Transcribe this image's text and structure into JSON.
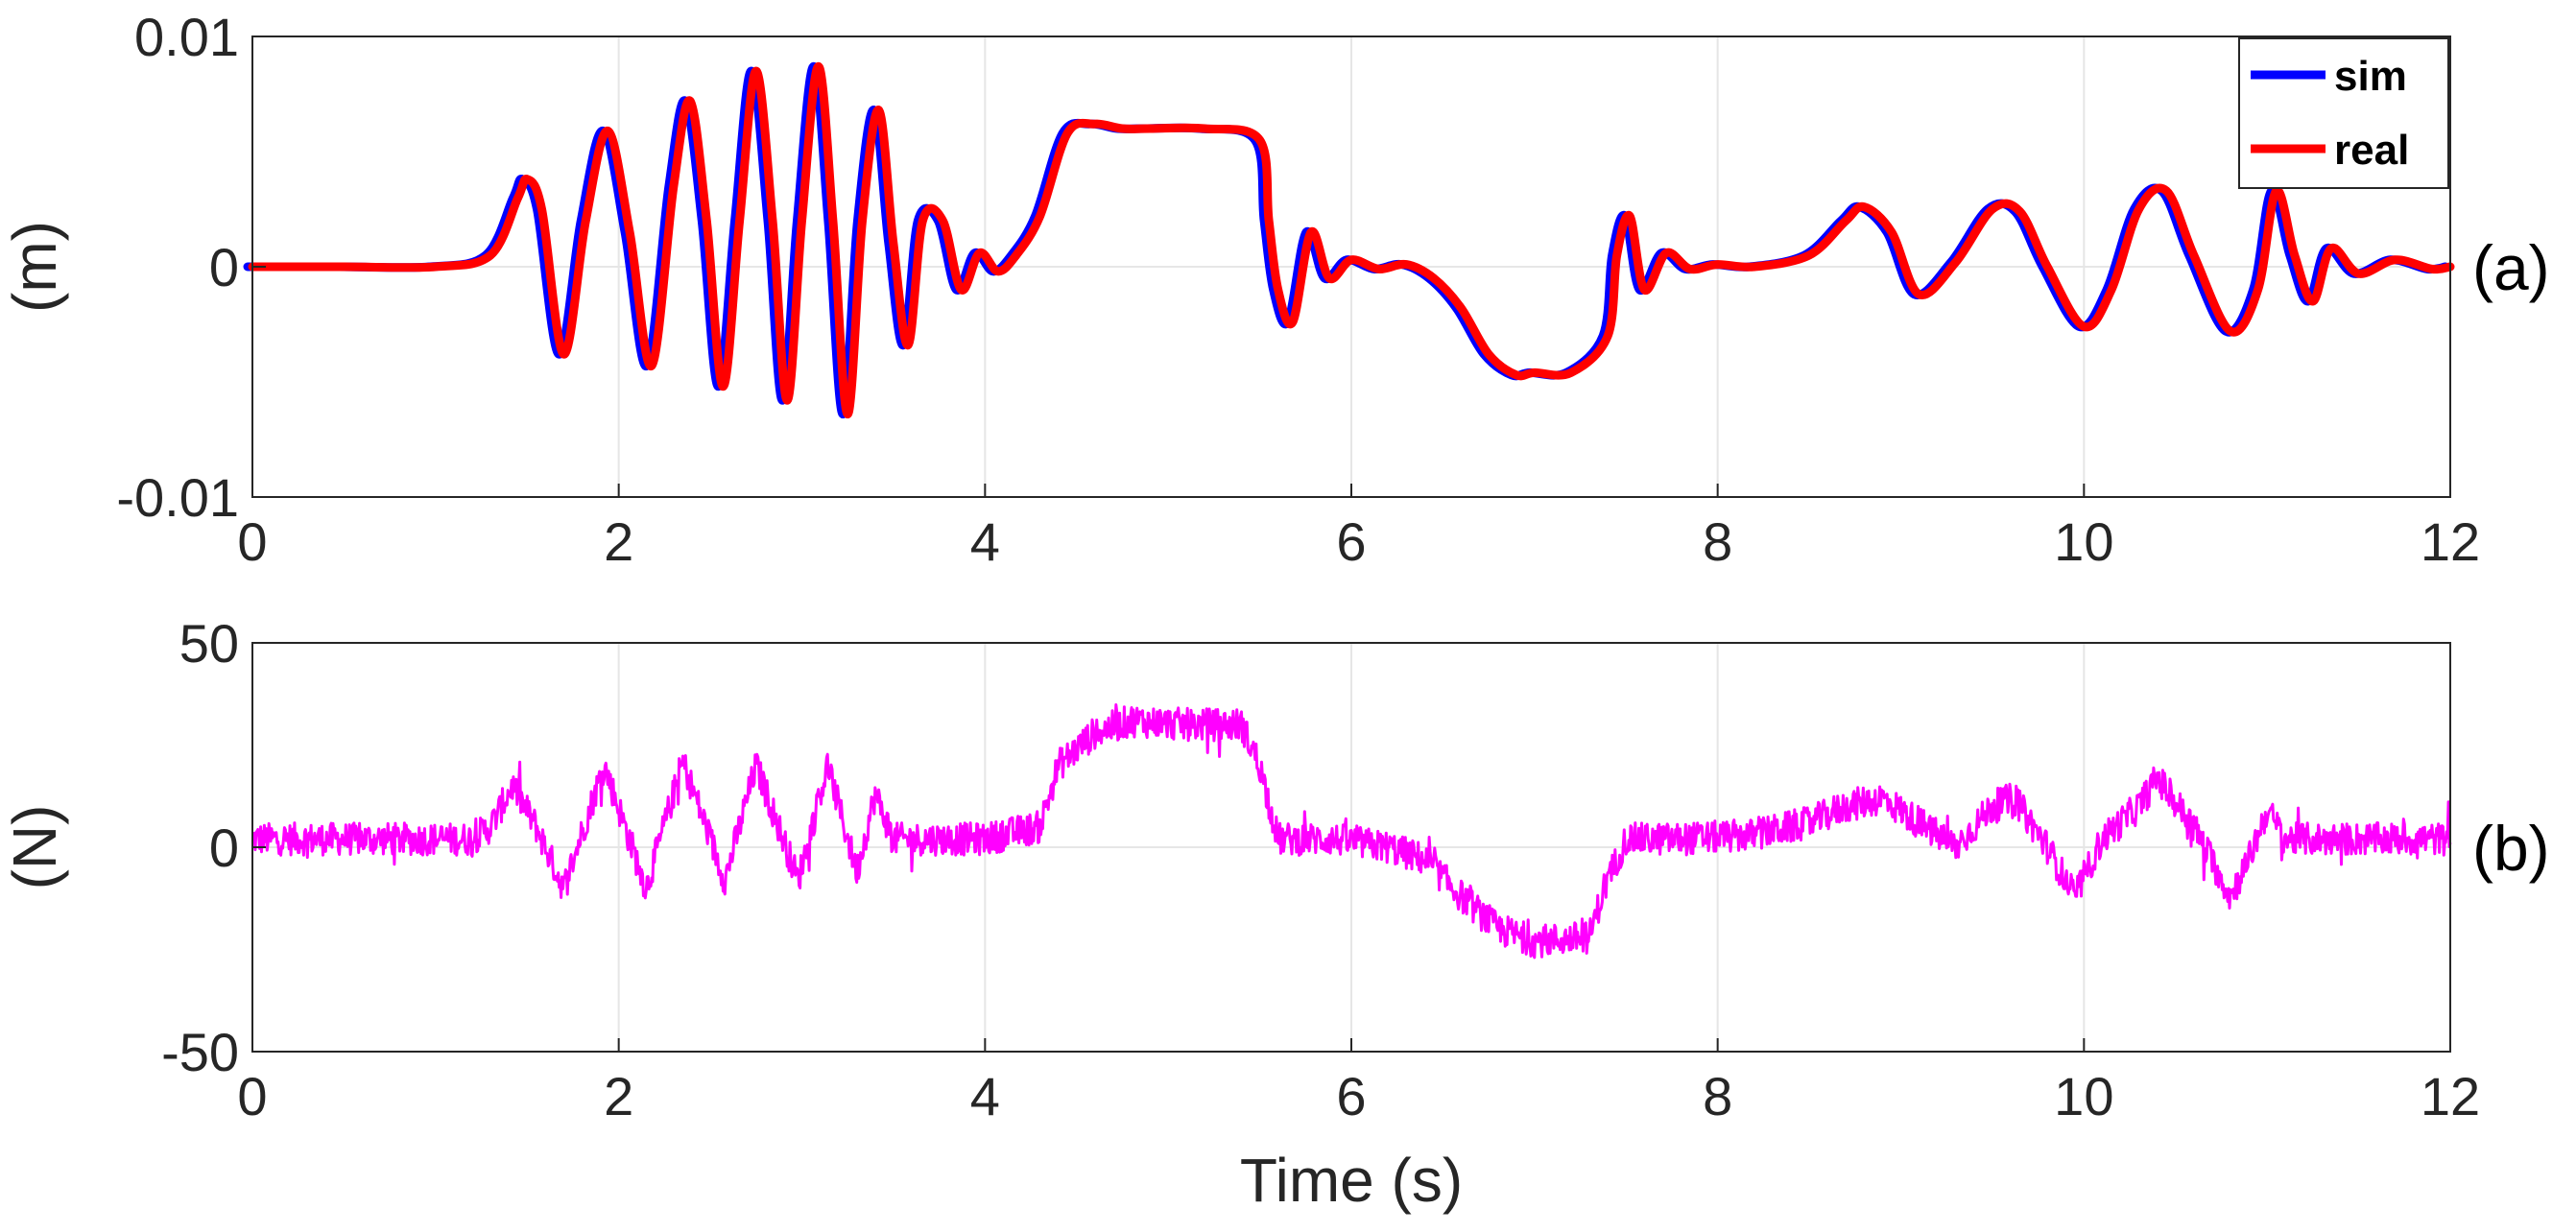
{
  "chart_data": [
    {
      "type": "line",
      "panel_label": "(a)",
      "ylabel": "(m)",
      "xlabel": "",
      "xlim": [
        0,
        12
      ],
      "ylim": [
        -0.01,
        0.01
      ],
      "xticks": [
        "0",
        "2",
        "4",
        "6",
        "8",
        "10",
        "12"
      ],
      "yticks": [
        "-0.01",
        "0",
        "0.01"
      ],
      "grid": true,
      "legend_position": "top-right",
      "series": [
        {
          "name": "sim",
          "color": "#0000ff",
          "x": [
            0,
            0.5,
            1.0,
            1.3,
            1.45,
            1.5,
            1.58,
            1.7,
            1.82,
            1.94,
            2.06,
            2.18,
            2.3,
            2.39,
            2.48,
            2.57,
            2.66,
            2.75,
            2.84,
            2.92,
            3.0,
            3.09,
            3.17,
            3.25,
            3.33,
            3.42,
            3.5,
            3.58,
            3.66,
            3.77,
            3.87,
            3.97,
            4.07,
            4.17,
            4.3,
            4.45,
            4.6,
            4.75,
            4.9,
            5.2,
            5.5,
            5.55,
            5.6,
            5.68,
            5.78,
            5.88,
            6.0,
            6.15,
            6.3,
            6.45,
            6.6,
            6.75,
            6.9,
            7.0,
            7.2,
            7.4,
            7.45,
            7.52,
            7.6,
            7.72,
            7.85,
            8.0,
            8.2,
            8.5,
            8.7,
            8.8,
            8.95,
            9.1,
            9.3,
            9.5,
            9.65,
            9.8,
            10.0,
            10.15,
            10.3,
            10.45,
            10.6,
            10.8,
            10.95,
            11.05,
            11.15,
            11.25,
            11.35,
            11.5,
            11.7,
            11.9,
            12.0
          ],
          "y": [
            0,
            0,
            0,
            0.0005,
            0.003,
            0.0038,
            0.0025,
            -0.0038,
            0.002,
            0.0059,
            0.0015,
            -0.0043,
            0.0035,
            0.0072,
            0.002,
            -0.0052,
            0.002,
            0.0085,
            0.002,
            -0.0058,
            0.002,
            0.0087,
            0.002,
            -0.0064,
            0.002,
            0.0068,
            0.001,
            -0.0034,
            0.002,
            0.002,
            -0.001,
            0.0006,
            -0.0002,
            0.0005,
            0.0022,
            0.0058,
            0.0062,
            0.006,
            0.006,
            0.006,
            0.0055,
            0.002,
            -0.001,
            -0.0024,
            0.0015,
            -0.0005,
            0.0003,
            -0.0001,
            0.0001,
            -0.0005,
            -0.0018,
            -0.0038,
            -0.0047,
            -0.0046,
            -0.0046,
            -0.003,
            0.0005,
            0.0022,
            -0.001,
            0.0006,
            -0.0001,
            0.0001,
            0,
            0.0005,
            0.002,
            0.0026,
            0.0015,
            -0.0012,
            0.0002,
            0.0025,
            0.0024,
            0.0,
            -0.0026,
            -0.001,
            0.0025,
            0.0033,
            0.0005,
            -0.0028,
            -0.001,
            0.0033,
            0.0005,
            -0.0015,
            0.0008,
            -0.0003,
            0.0003,
            -0.0001,
            0
          ]
        },
        {
          "name": "real",
          "color": "#ff0000",
          "x": [
            0,
            0.5,
            1.0,
            1.3,
            1.45,
            1.5,
            1.58,
            1.7,
            1.82,
            1.94,
            2.06,
            2.18,
            2.3,
            2.39,
            2.48,
            2.57,
            2.66,
            2.75,
            2.84,
            2.92,
            3.0,
            3.09,
            3.17,
            3.25,
            3.33,
            3.42,
            3.5,
            3.58,
            3.66,
            3.77,
            3.87,
            3.97,
            4.07,
            4.17,
            4.3,
            4.45,
            4.6,
            4.75,
            4.9,
            5.2,
            5.5,
            5.55,
            5.6,
            5.68,
            5.78,
            5.88,
            6.0,
            6.15,
            6.3,
            6.45,
            6.6,
            6.75,
            6.9,
            7.0,
            7.2,
            7.4,
            7.45,
            7.52,
            7.6,
            7.72,
            7.85,
            8.0,
            8.2,
            8.5,
            8.7,
            8.8,
            8.95,
            9.1,
            9.3,
            9.5,
            9.65,
            9.8,
            10.0,
            10.15,
            10.3,
            10.45,
            10.6,
            10.8,
            10.95,
            11.05,
            11.15,
            11.25,
            11.35,
            11.5,
            11.7,
            11.9,
            12.0
          ],
          "y": [
            0,
            0,
            0,
            0.0005,
            0.003,
            0.0038,
            0.0025,
            -0.0038,
            0.002,
            0.0059,
            0.0015,
            -0.0043,
            0.0035,
            0.0072,
            0.002,
            -0.0052,
            0.002,
            0.0085,
            0.002,
            -0.0058,
            0.002,
            0.0087,
            0.002,
            -0.0064,
            0.002,
            0.0068,
            0.001,
            -0.0034,
            0.002,
            0.002,
            -0.001,
            0.0006,
            -0.0002,
            0.0005,
            0.0022,
            0.0058,
            0.0062,
            0.006,
            0.006,
            0.006,
            0.0055,
            0.002,
            -0.001,
            -0.0024,
            0.0015,
            -0.0005,
            0.0003,
            -0.0001,
            0.0001,
            -0.0005,
            -0.0018,
            -0.0038,
            -0.0047,
            -0.0046,
            -0.0046,
            -0.003,
            0.0005,
            0.0022,
            -0.001,
            0.0006,
            -0.0001,
            0.0001,
            0,
            0.0005,
            0.002,
            0.0026,
            0.0015,
            -0.0012,
            0.0002,
            0.0025,
            0.0024,
            0.0,
            -0.0026,
            -0.001,
            0.0025,
            0.0033,
            0.0005,
            -0.0028,
            -0.001,
            0.0033,
            0.0005,
            -0.0015,
            0.0008,
            -0.0003,
            0.0003,
            -0.0001,
            0
          ]
        }
      ]
    },
    {
      "type": "line",
      "panel_label": "(b)",
      "ylabel": "(N)",
      "xlabel": "Time (s)",
      "xlim": [
        0,
        12
      ],
      "ylim": [
        -50,
        50
      ],
      "xticks": [
        "0",
        "2",
        "4",
        "6",
        "8",
        "10",
        "12"
      ],
      "yticks": [
        "-50",
        "0",
        "50"
      ],
      "grid": true,
      "noise_amplitude": 4,
      "series": [
        {
          "name": "",
          "color": "#ff00ff",
          "x": [
            0,
            1.2,
            1.3,
            1.42,
            1.55,
            1.7,
            1.92,
            2.15,
            2.35,
            2.58,
            2.75,
            2.98,
            3.14,
            3.3,
            3.4,
            3.5,
            4.0,
            4.3,
            4.4,
            4.6,
            4.8,
            5.1,
            5.4,
            5.5,
            5.6,
            5.9,
            6.2,
            6.4,
            6.6,
            6.8,
            7.0,
            7.3,
            7.38,
            7.5,
            7.8,
            8.2,
            8.5,
            8.7,
            8.9,
            9.1,
            9.3,
            9.5,
            9.62,
            9.8,
            9.95,
            10.1,
            10.3,
            10.4,
            10.6,
            10.8,
            10.9,
            11.0,
            11.1,
            11.3,
            12.0
          ],
          "y": [
            2,
            2,
            5,
            15,
            5,
            -10,
            20,
            -10,
            21,
            -8,
            20,
            -8,
            20,
            -6,
            13,
            2,
            2,
            5,
            20,
            28,
            31,
            30,
            30,
            20,
            2,
            2,
            0,
            -3,
            -12,
            -20,
            -23,
            -22,
            -10,
            2,
            2,
            3,
            6,
            10,
            12,
            6,
            0,
            10,
            12,
            0,
            -12,
            2,
            10,
            17,
            5,
            -12,
            -3,
            9,
            2,
            2,
            2
          ]
        }
      ]
    }
  ]
}
